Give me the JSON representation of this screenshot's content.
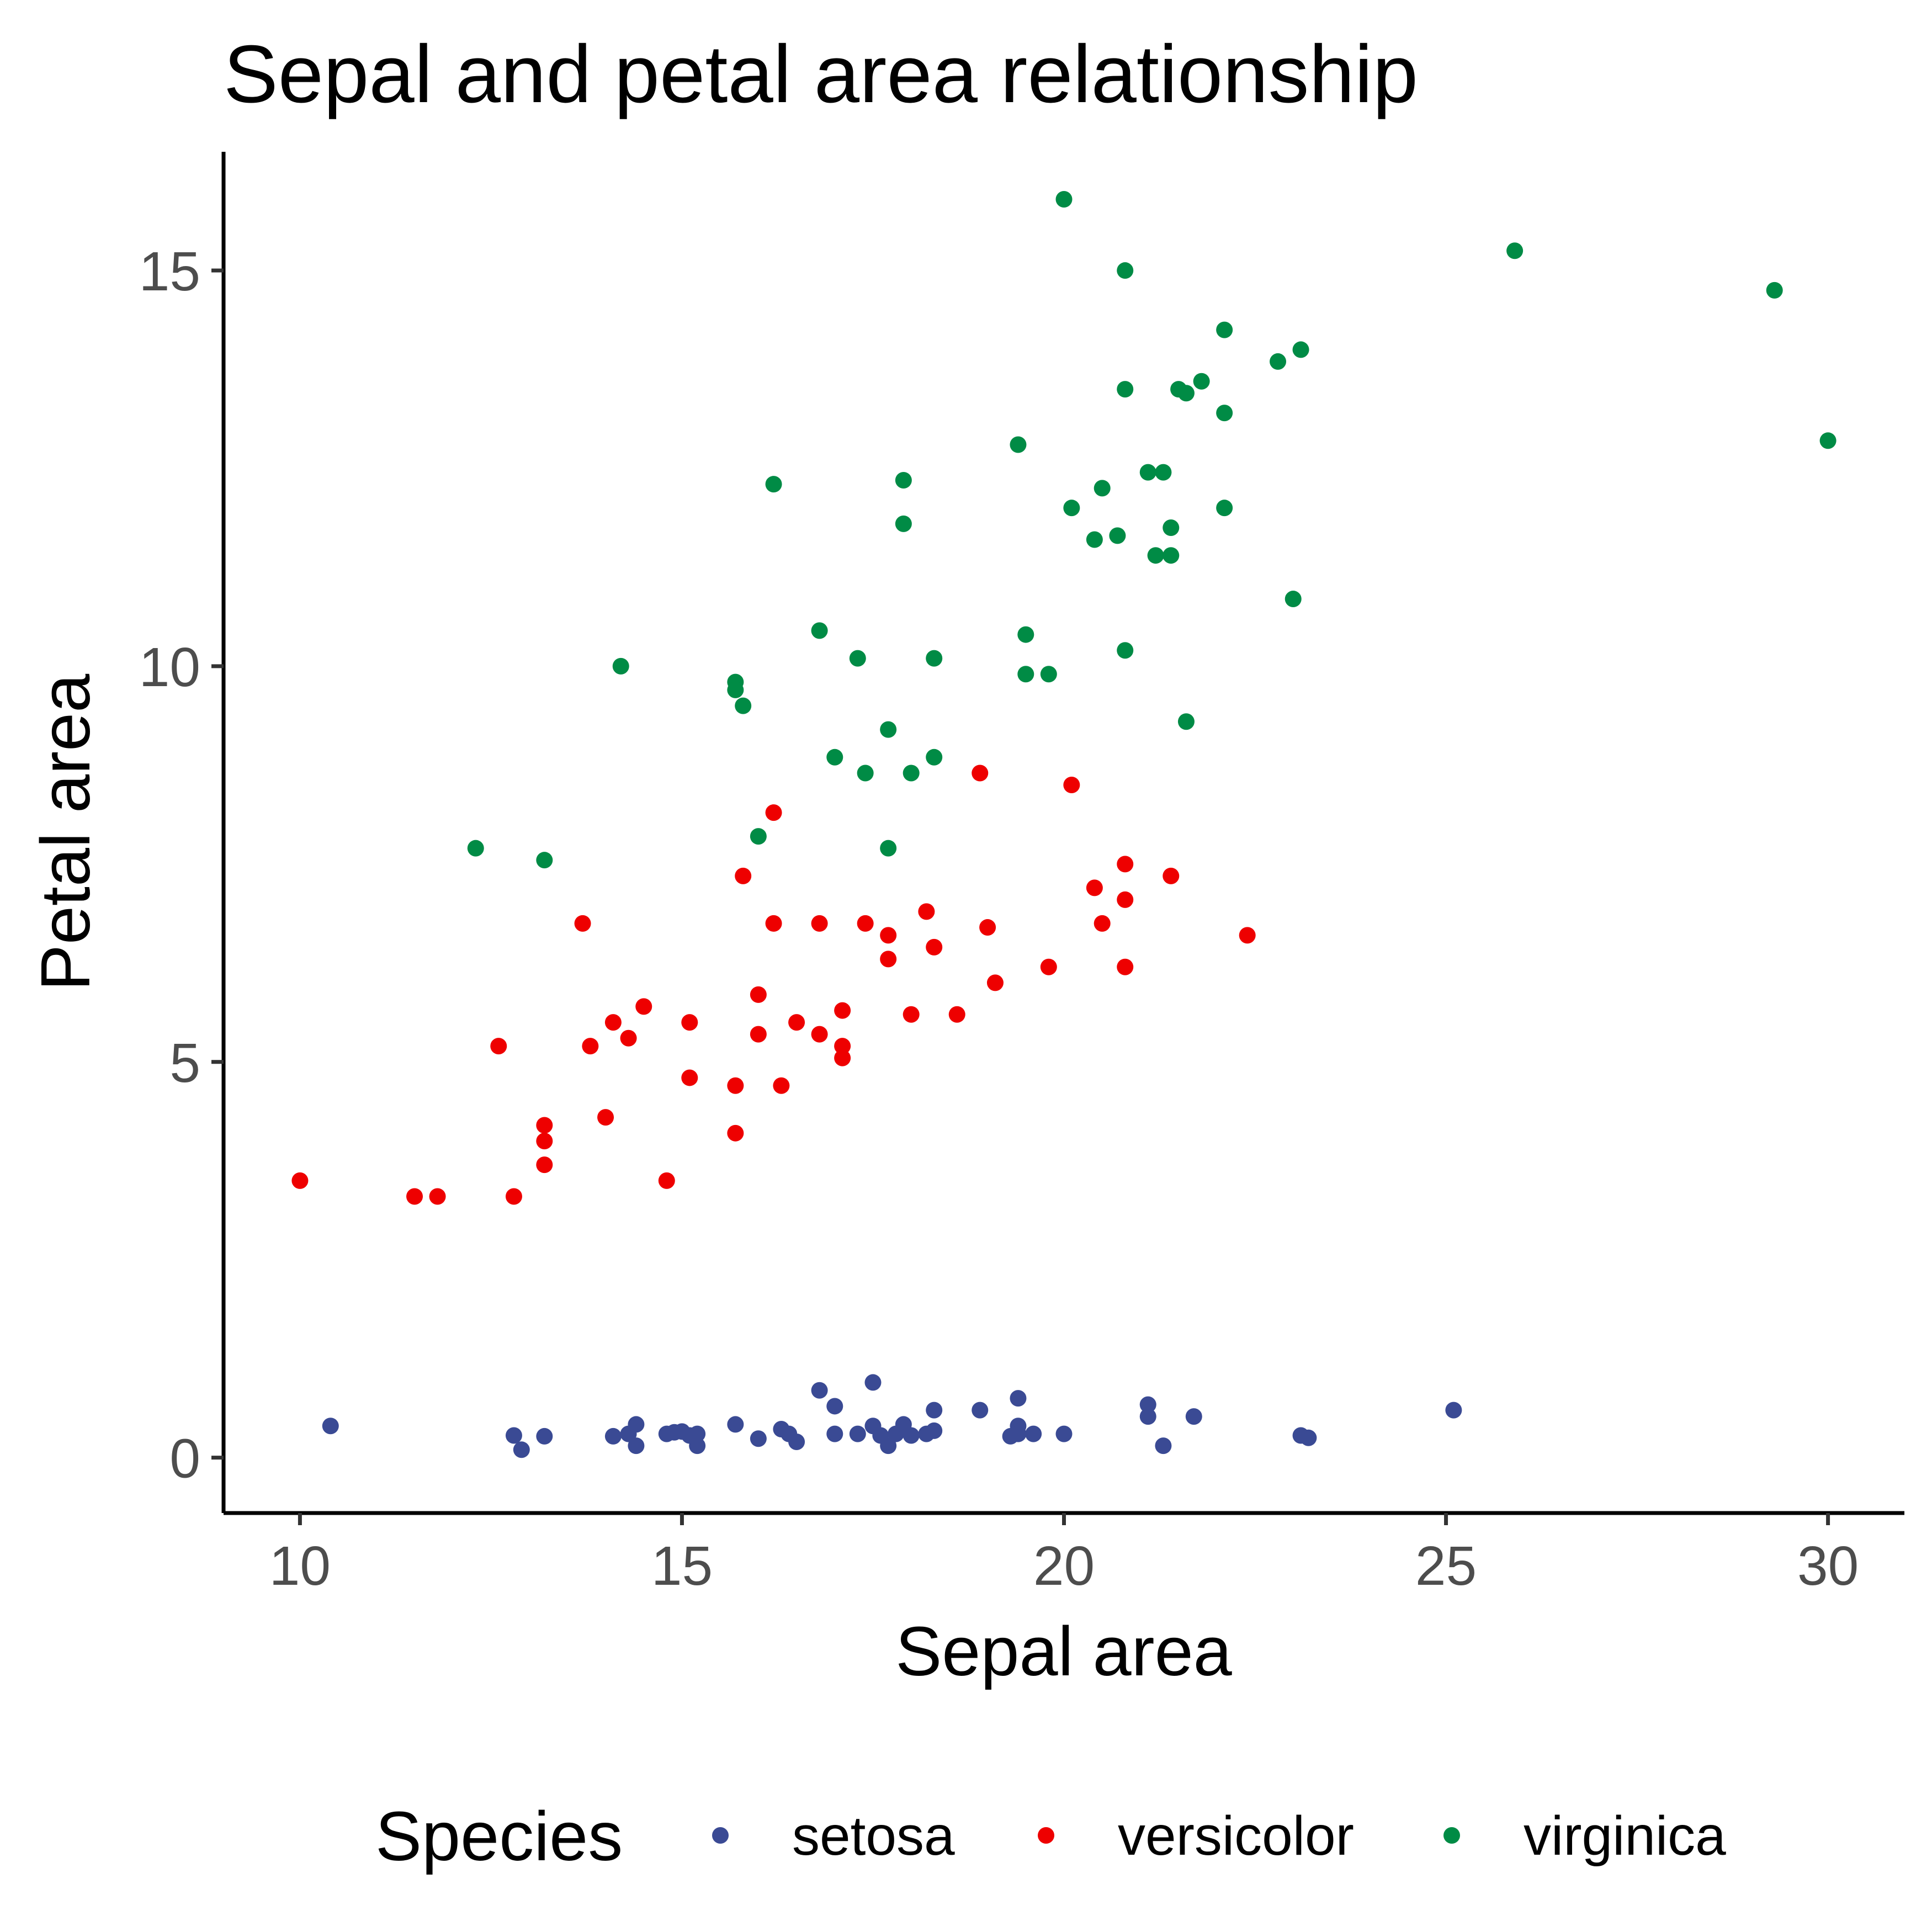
{
  "chart_data": {
    "type": "scatter",
    "title": "Sepal and petal area relationship",
    "xlabel": "Sepal area",
    "ylabel": "Petal area",
    "xlim": [
      9,
      31
    ],
    "ylim": [
      -0.7,
      16.5
    ],
    "x_ticks": [
      10,
      15,
      20,
      25,
      30
    ],
    "y_ticks": [
      0,
      5,
      10,
      15
    ],
    "x_tick_labels": [
      "10",
      "15",
      "20",
      "25",
      "30"
    ],
    "y_tick_labels": [
      "0",
      "5",
      "10",
      "15"
    ],
    "grid": false,
    "legend": {
      "title": "Species",
      "position": "bottom"
    },
    "series": [
      {
        "name": "setosa",
        "color": "#3A4A94",
        "points": [
          [
            10.4,
            0.4
          ],
          [
            12.8,
            0.28
          ],
          [
            12.9,
            0.1
          ],
          [
            13.2,
            0.27
          ],
          [
            14.1,
            0.27
          ],
          [
            14.3,
            0.3
          ],
          [
            14.4,
            0.15
          ],
          [
            14.4,
            0.42
          ],
          [
            14.8,
            0.3
          ],
          [
            14.9,
            0.32
          ],
          [
            15.0,
            0.33
          ],
          [
            15.1,
            0.28
          ],
          [
            15.2,
            0.3
          ],
          [
            15.2,
            0.15
          ],
          [
            15.7,
            0.42
          ],
          [
            16.0,
            0.24
          ],
          [
            16.3,
            0.36
          ],
          [
            16.4,
            0.3
          ],
          [
            16.5,
            0.2
          ],
          [
            16.8,
            0.85
          ],
          [
            17.0,
            0.65
          ],
          [
            17.0,
            0.3
          ],
          [
            17.3,
            0.3
          ],
          [
            17.5,
            0.95
          ],
          [
            17.5,
            0.4
          ],
          [
            17.6,
            0.28
          ],
          [
            17.7,
            0.15
          ],
          [
            17.8,
            0.3
          ],
          [
            17.9,
            0.42
          ],
          [
            18.0,
            0.28
          ],
          [
            18.2,
            0.3
          ],
          [
            18.3,
            0.34
          ],
          [
            18.3,
            0.6
          ],
          [
            18.9,
            0.6
          ],
          [
            19.3,
            0.27
          ],
          [
            19.4,
            0.4
          ],
          [
            19.4,
            0.3
          ],
          [
            19.4,
            0.75
          ],
          [
            19.6,
            0.3
          ],
          [
            20.0,
            0.3
          ],
          [
            21.1,
            0.67
          ],
          [
            21.1,
            0.52
          ],
          [
            21.3,
            0.15
          ],
          [
            21.7,
            0.52
          ],
          [
            23.1,
            0.28
          ],
          [
            23.2,
            0.25
          ],
          [
            25.1,
            0.6
          ]
        ]
      },
      {
        "name": "versicolor",
        "color": "#EE0000",
        "points": [
          [
            10.0,
            3.5
          ],
          [
            11.5,
            3.3
          ],
          [
            11.8,
            3.3
          ],
          [
            12.6,
            5.2
          ],
          [
            12.8,
            3.3
          ],
          [
            13.2,
            4.2
          ],
          [
            13.2,
            4.0
          ],
          [
            13.2,
            3.7
          ],
          [
            13.7,
            6.75
          ],
          [
            13.8,
            5.2
          ],
          [
            14.0,
            4.3
          ],
          [
            14.1,
            5.5
          ],
          [
            14.3,
            5.3
          ],
          [
            14.5,
            5.7
          ],
          [
            14.8,
            3.5
          ],
          [
            15.1,
            4.8
          ],
          [
            15.1,
            5.5
          ],
          [
            15.7,
            4.7
          ],
          [
            15.7,
            4.1
          ],
          [
            15.8,
            7.35
          ],
          [
            16.0,
            5.35
          ],
          [
            16.0,
            5.85
          ],
          [
            16.2,
            8.15
          ],
          [
            16.2,
            6.75
          ],
          [
            16.3,
            4.7
          ],
          [
            16.5,
            5.5
          ],
          [
            16.8,
            5.35
          ],
          [
            16.8,
            6.75
          ],
          [
            17.1,
            5.65
          ],
          [
            17.1,
            5.2
          ],
          [
            17.1,
            5.05
          ],
          [
            17.4,
            6.75
          ],
          [
            17.7,
            6.6
          ],
          [
            17.7,
            6.3
          ],
          [
            18.0,
            5.6
          ],
          [
            18.2,
            6.9
          ],
          [
            18.3,
            6.45
          ],
          [
            18.6,
            5.6
          ],
          [
            18.9,
            8.65
          ],
          [
            19.0,
            6.7
          ],
          [
            19.1,
            6.0
          ],
          [
            19.8,
            6.2
          ],
          [
            20.1,
            8.5
          ],
          [
            20.4,
            7.2
          ],
          [
            20.5,
            6.75
          ],
          [
            20.8,
            7.05
          ],
          [
            20.8,
            6.2
          ],
          [
            20.8,
            7.5
          ],
          [
            21.4,
            7.35
          ],
          [
            22.4,
            6.6
          ]
        ]
      },
      {
        "name": "virginica",
        "color": "#008B45",
        "points": [
          [
            12.3,
            7.7
          ],
          [
            13.2,
            7.55
          ],
          [
            14.2,
            10.0
          ],
          [
            15.7,
            9.8
          ],
          [
            15.7,
            9.7
          ],
          [
            15.8,
            9.5
          ],
          [
            16.0,
            7.85
          ],
          [
            16.2,
            12.3
          ],
          [
            16.8,
            10.45
          ],
          [
            17.0,
            8.85
          ],
          [
            17.3,
            10.1
          ],
          [
            17.4,
            8.65
          ],
          [
            17.7,
            7.7
          ],
          [
            17.7,
            9.2
          ],
          [
            17.9,
            12.35
          ],
          [
            17.9,
            11.8
          ],
          [
            18.0,
            8.65
          ],
          [
            18.3,
            10.1
          ],
          [
            18.3,
            8.85
          ],
          [
            19.4,
            12.8
          ],
          [
            19.5,
            10.4
          ],
          [
            19.5,
            9.9
          ],
          [
            19.8,
            9.9
          ],
          [
            20.0,
            15.9
          ],
          [
            20.1,
            12.0
          ],
          [
            20.4,
            11.6
          ],
          [
            20.5,
            12.25
          ],
          [
            20.7,
            11.65
          ],
          [
            20.8,
            13.5
          ],
          [
            20.8,
            15.0
          ],
          [
            20.8,
            10.2
          ],
          [
            21.1,
            12.45
          ],
          [
            21.2,
            11.4
          ],
          [
            21.3,
            12.45
          ],
          [
            21.4,
            11.4
          ],
          [
            21.4,
            11.75
          ],
          [
            21.5,
            13.5
          ],
          [
            21.6,
            13.45
          ],
          [
            21.6,
            9.3
          ],
          [
            21.8,
            13.6
          ],
          [
            22.1,
            13.2
          ],
          [
            22.1,
            12.0
          ],
          [
            22.1,
            14.25
          ],
          [
            22.8,
            13.85
          ],
          [
            23.0,
            10.85
          ],
          [
            23.1,
            14.0
          ],
          [
            25.9,
            15.25
          ],
          [
            29.3,
            14.75
          ],
          [
            30.0,
            12.85
          ]
        ]
      }
    ]
  }
}
